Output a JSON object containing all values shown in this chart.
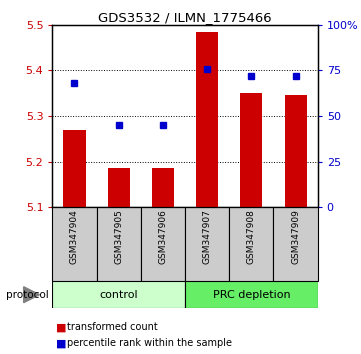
{
  "title": "GDS3532 / ILMN_1775466",
  "categories": [
    "GSM347904",
    "GSM347905",
    "GSM347906",
    "GSM347907",
    "GSM347908",
    "GSM347909"
  ],
  "red_values": [
    5.27,
    5.185,
    5.185,
    5.485,
    5.35,
    5.345
  ],
  "blue_values_pct": [
    68,
    45,
    45,
    76,
    72,
    72
  ],
  "ylim_left": [
    5.1,
    5.5
  ],
  "yticks_left": [
    5.1,
    5.2,
    5.3,
    5.4,
    5.5
  ],
  "yticks_right": [
    0,
    25,
    50,
    75,
    100
  ],
  "ylim_right": [
    0,
    100
  ],
  "bar_color": "#cc0000",
  "dot_color": "#0000cc",
  "control_label": "control",
  "prc_label": "PRC depletion",
  "protocol_label": "protocol",
  "legend_red": "transformed count",
  "legend_blue": "percentile rank within the sample",
  "control_color": "#ccffcc",
  "prc_color": "#66ee66",
  "tick_bg_color": "#cccccc",
  "bar_bottom": 5.1,
  "n_control": 3
}
